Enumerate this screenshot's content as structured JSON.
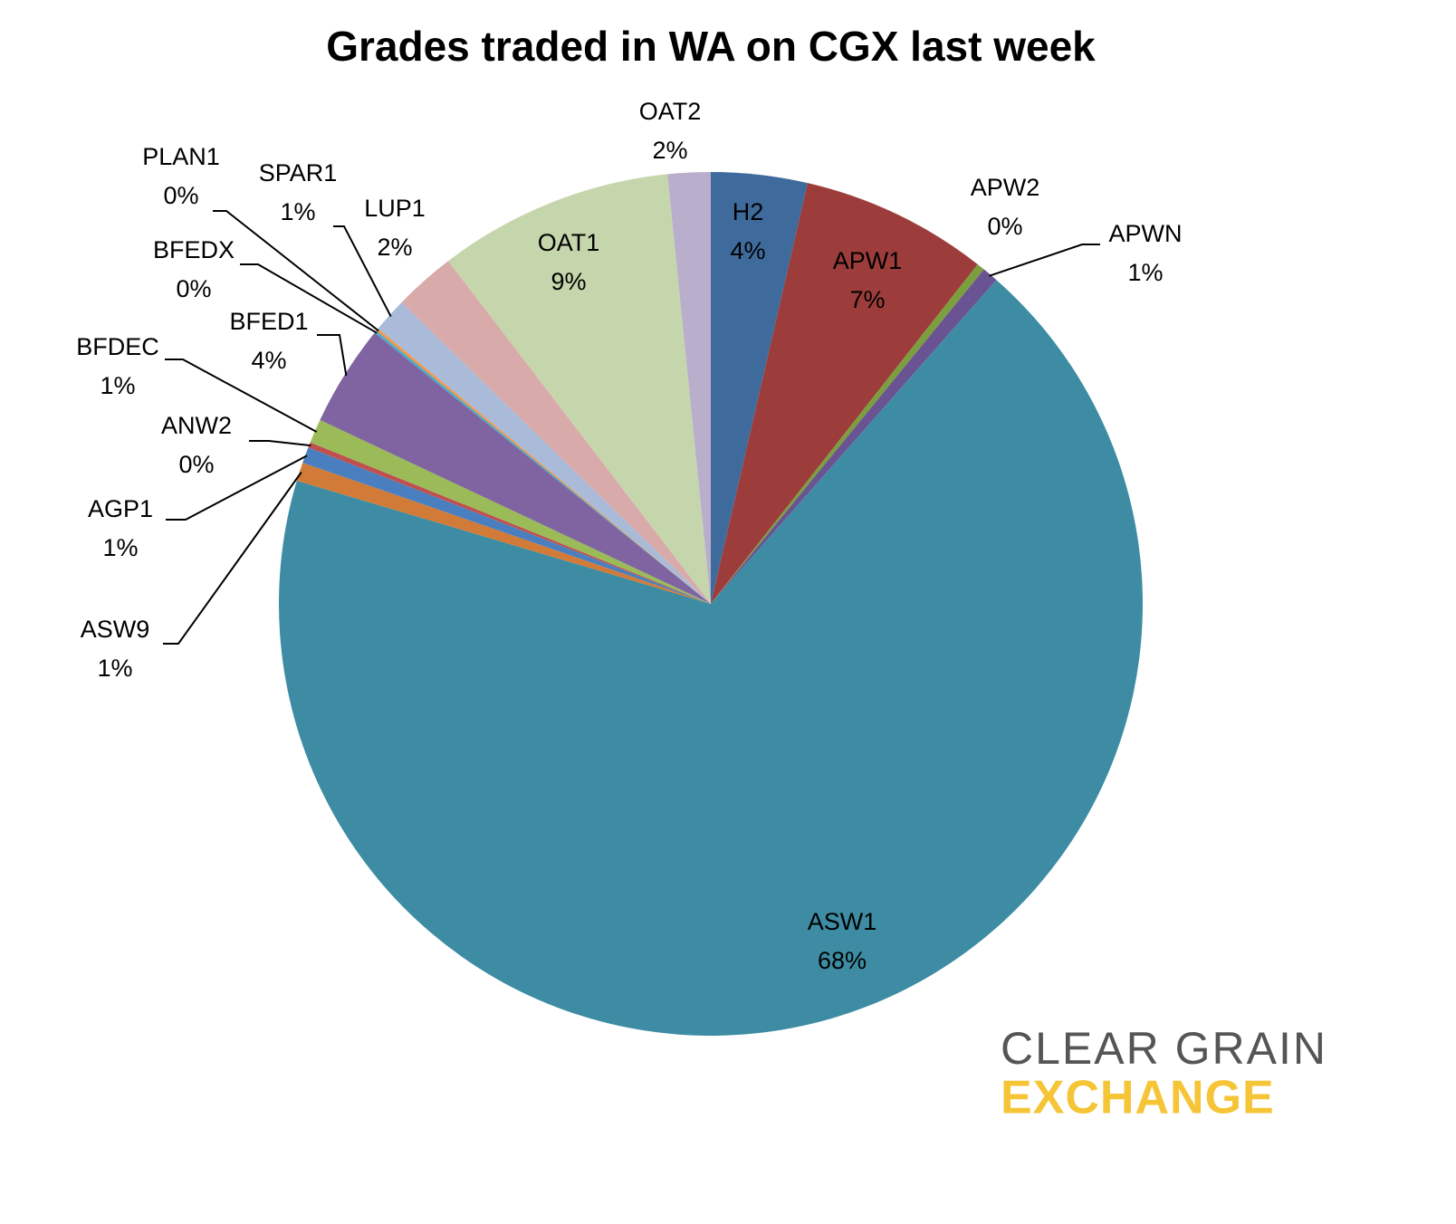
{
  "chart_data": {
    "type": "pie",
    "title": "Grades traded in WA on CGX last week",
    "categories": [
      "H2",
      "APW1",
      "APW2",
      "APWN",
      "ASW1",
      "ASW9",
      "AGP1",
      "ANW2",
      "BFDEC",
      "BFED1",
      "BFEDX",
      "PLAN1",
      "SPAR1",
      "LUP1",
      "OAT1",
      "OAT2"
    ],
    "values": [
      3.6,
      7.0,
      0.3,
      0.6,
      68.1,
      0.7,
      0.6,
      0.2,
      0.9,
      3.8,
      0.1,
      0.1,
      1.3,
      2.3,
      8.8,
      1.6
    ],
    "value_labels": [
      "4%",
      "7%",
      "0%",
      "1%",
      "68%",
      "1%",
      "1%",
      "0%",
      "1%",
      "4%",
      "0%",
      "0%",
      "1%",
      "2%",
      "9%",
      "2%"
    ],
    "colors": [
      "#3f6b9c",
      "#9c3d3b",
      "#7b9f3d",
      "#6a5392",
      "#3d8ca3",
      "#d27b38",
      "#4a7fbf",
      "#c0504d",
      "#9bbb59",
      "#8064a2",
      "#4bacc6",
      "#f79646",
      "#aabbd9",
      "#d9aaaa",
      "#c6d6ac",
      "#b9afcc"
    ]
  },
  "logo": {
    "line1": "CLEAR GRAIN",
    "line2": "EXCHANGE"
  }
}
